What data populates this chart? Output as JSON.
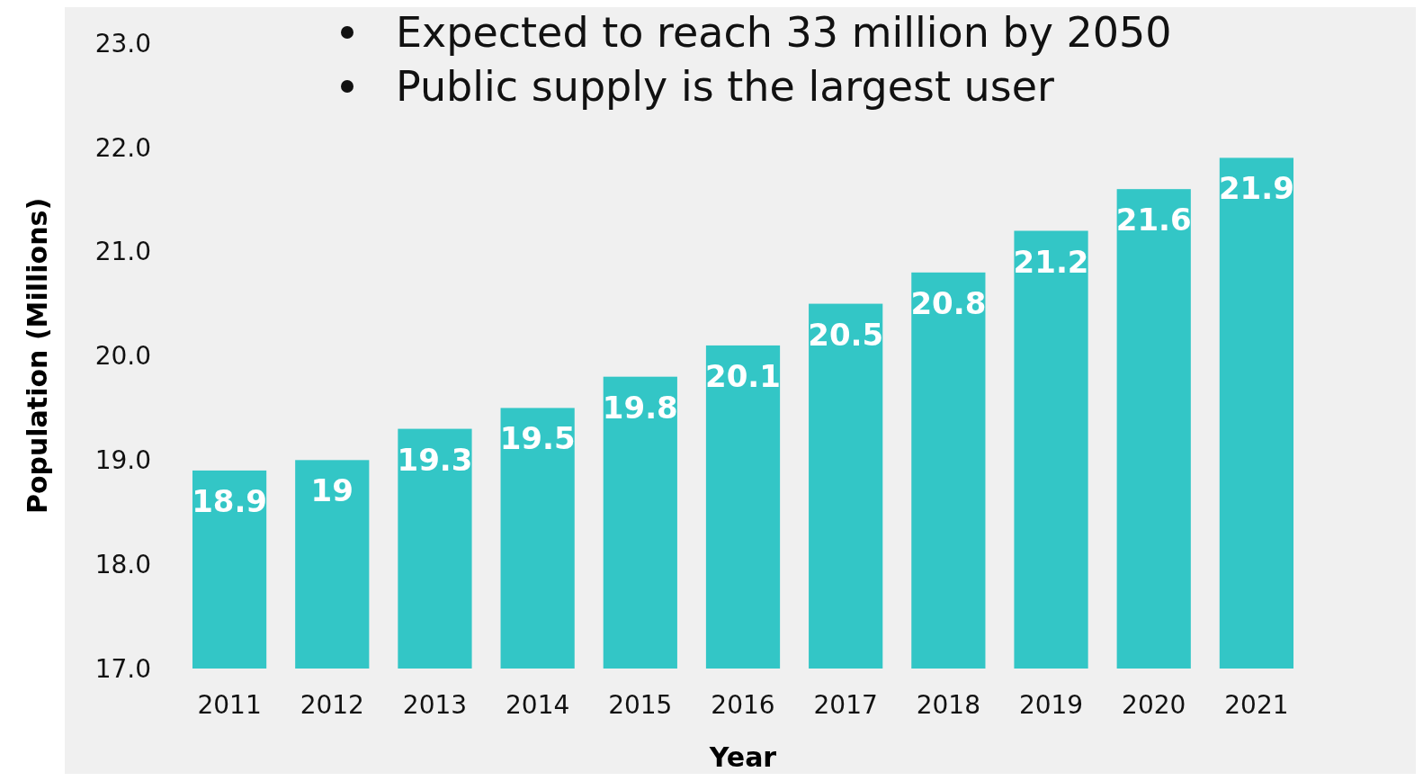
{
  "chart_data": {
    "type": "bar",
    "xlabel": "Year",
    "ylabel": "Population (Millions)",
    "annotations": [
      "Expected to reach 33 million by 2050",
      "Public supply is the largest user"
    ],
    "categories": [
      "2011",
      "2012",
      "2013",
      "2014",
      "2015",
      "2016",
      "2017",
      "2018",
      "2019",
      "2020",
      "2021"
    ],
    "values": [
      18.9,
      19,
      19.3,
      19.5,
      19.8,
      20.1,
      20.5,
      20.8,
      21.2,
      21.6,
      21.9
    ],
    "color": "#33c6c6",
    "ylim": [
      17,
      23
    ],
    "yticks": [
      {
        "value": 17,
        "label": "17.0"
      },
      {
        "value": 18,
        "label": "18.0"
      },
      {
        "value": 19,
        "label": "19.0"
      },
      {
        "value": 20,
        "label": "20.0"
      },
      {
        "value": 21,
        "label": "21.0"
      },
      {
        "value": 22,
        "label": "22.0"
      },
      {
        "value": 23,
        "label": "23.0"
      }
    ],
    "data_labels": true,
    "grid": false
  }
}
